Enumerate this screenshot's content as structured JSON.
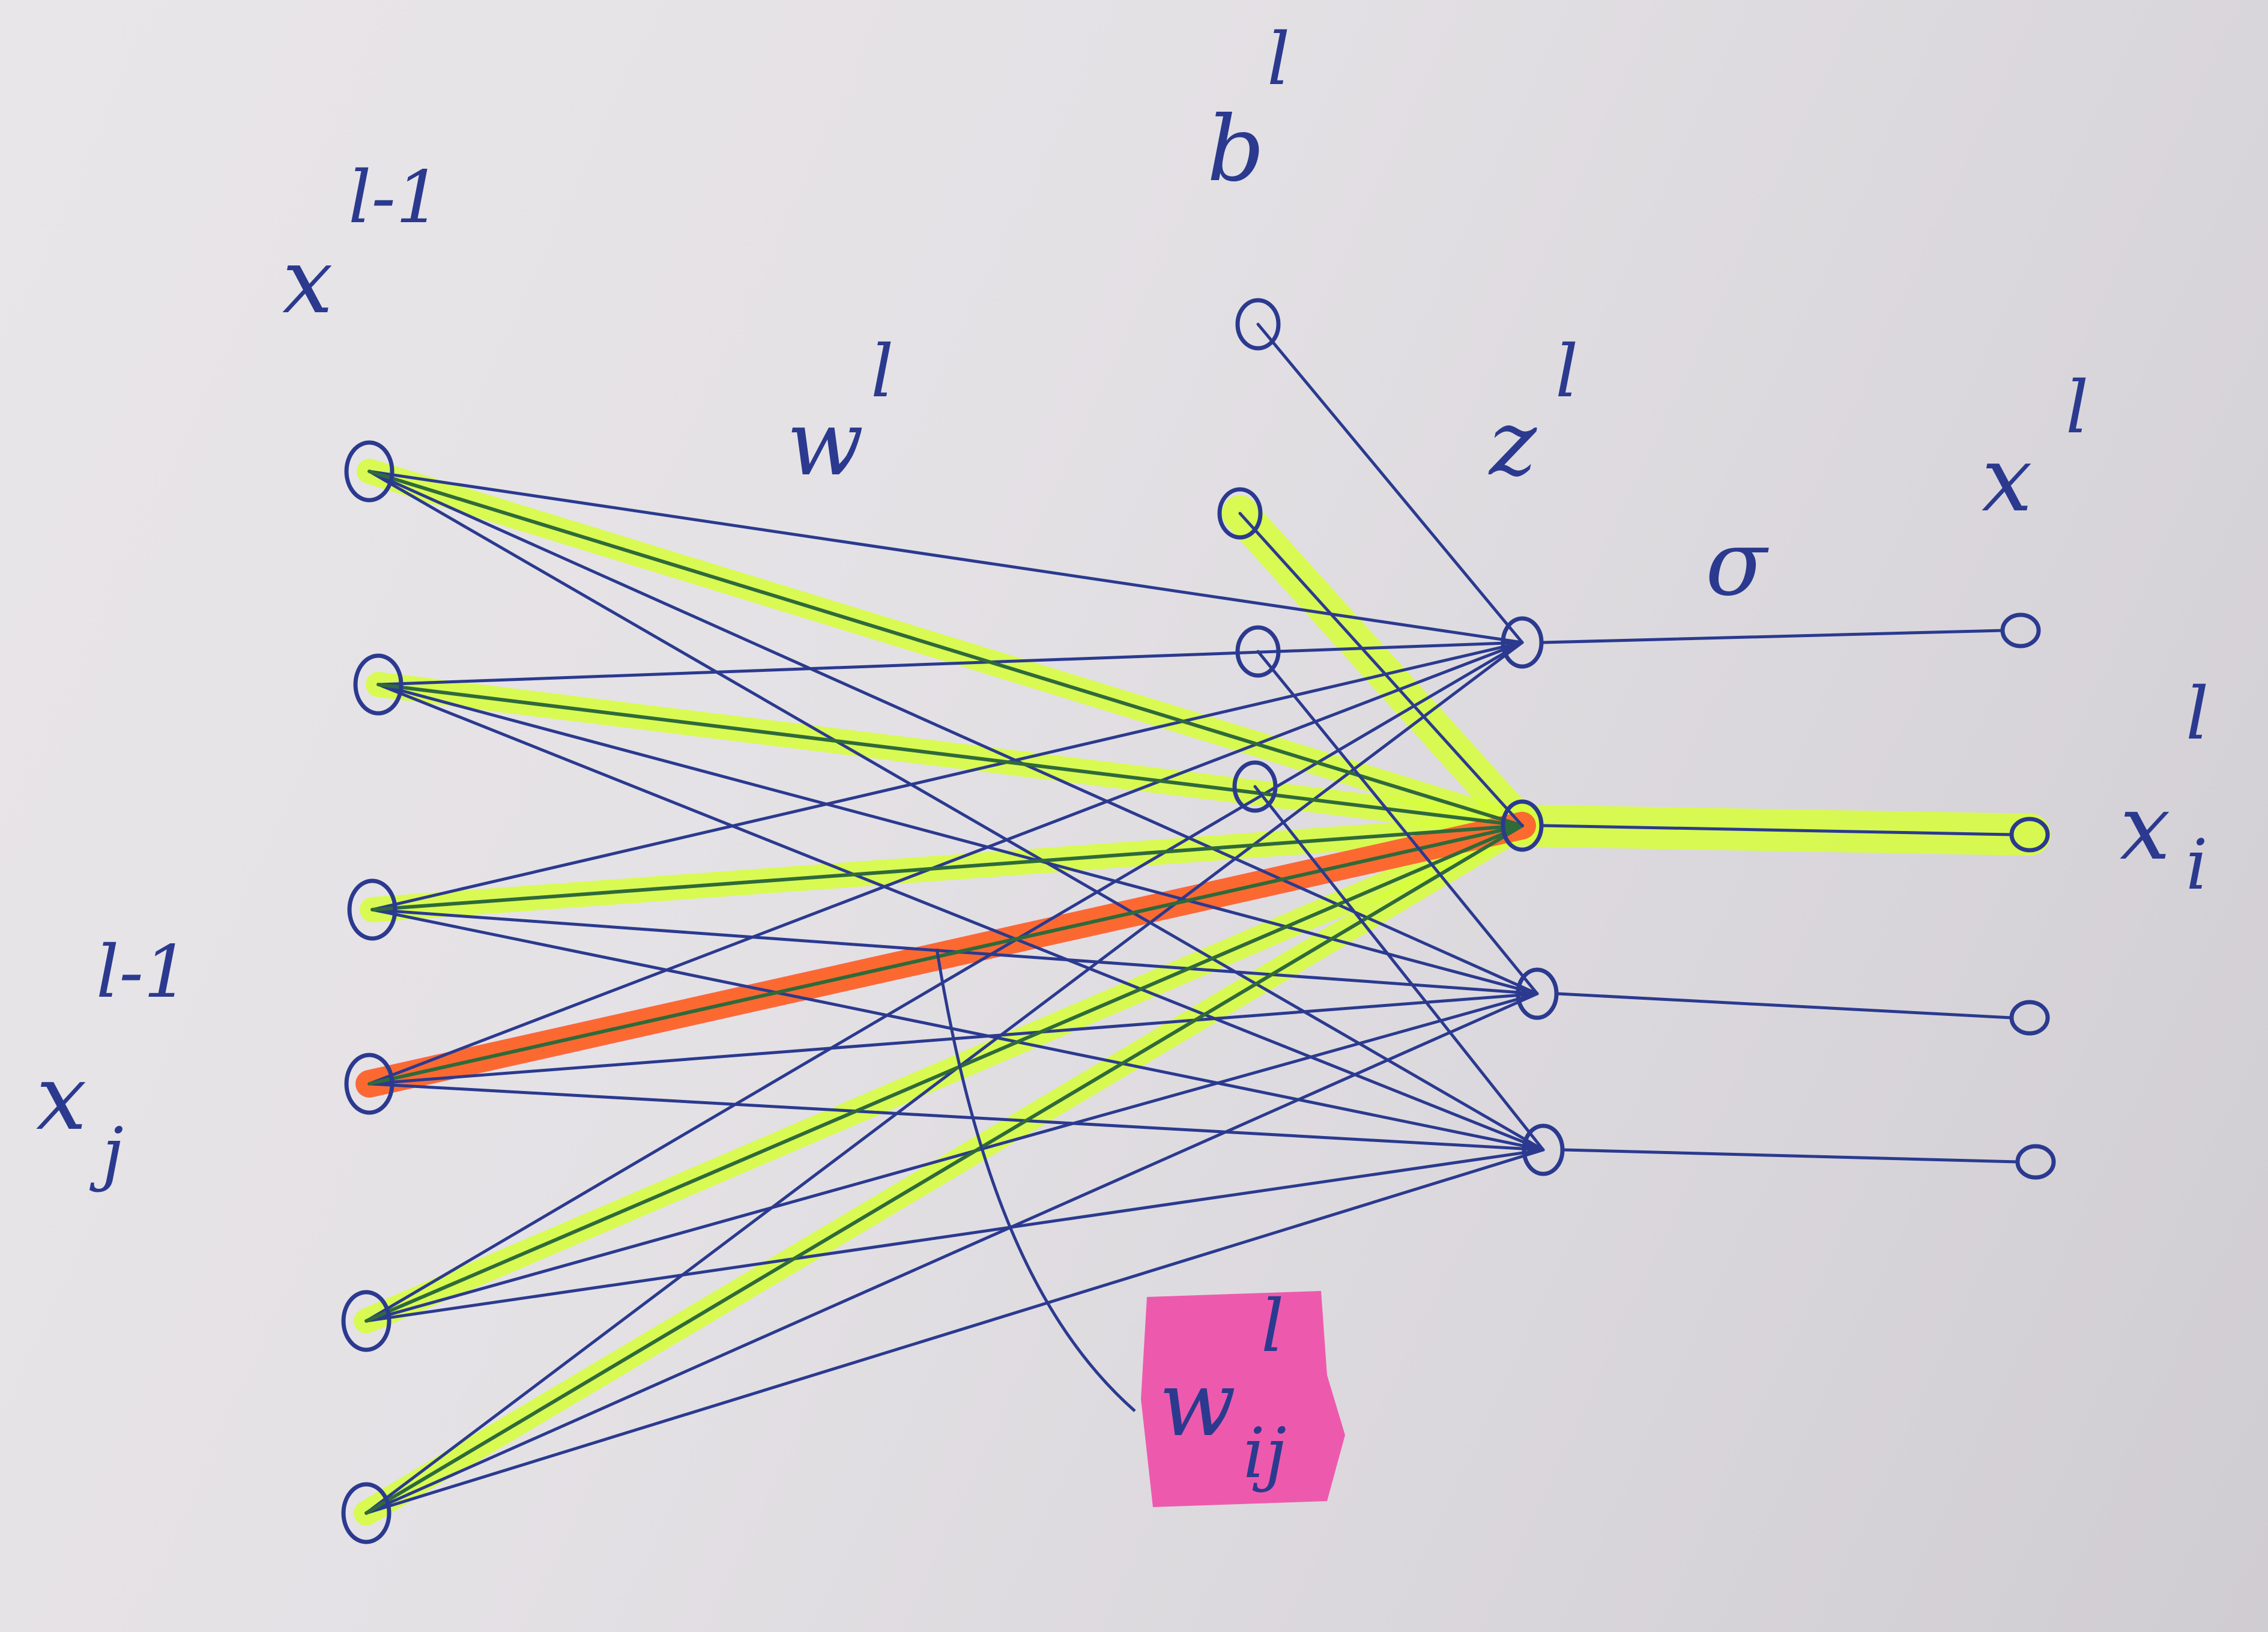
{
  "labels": {
    "x_prev": "x",
    "x_prev_sup": "l-1",
    "w_layer": "w",
    "w_layer_sup": "l",
    "b_layer": "b",
    "b_layer_sup": "l",
    "z_layer": "z",
    "z_layer_sup": "l",
    "sigma": "σ",
    "x_out": "x",
    "x_out_sup": "l",
    "x_i": "x",
    "x_i_sup": "l",
    "x_i_sub": "i",
    "x_j": "x",
    "x_j_sup": "l-1",
    "x_j_sub": "j",
    "w_ij": "w",
    "w_ij_sup": "l",
    "w_ij_sub": "ij"
  },
  "colors": {
    "ink": "#2b3a8f",
    "ink_green": "#2f6a3a",
    "highlight_yellow": "#d7ff3a",
    "highlight_orange": "#ff5a2e",
    "sticky_pink": "#ee4fa8"
  }
}
